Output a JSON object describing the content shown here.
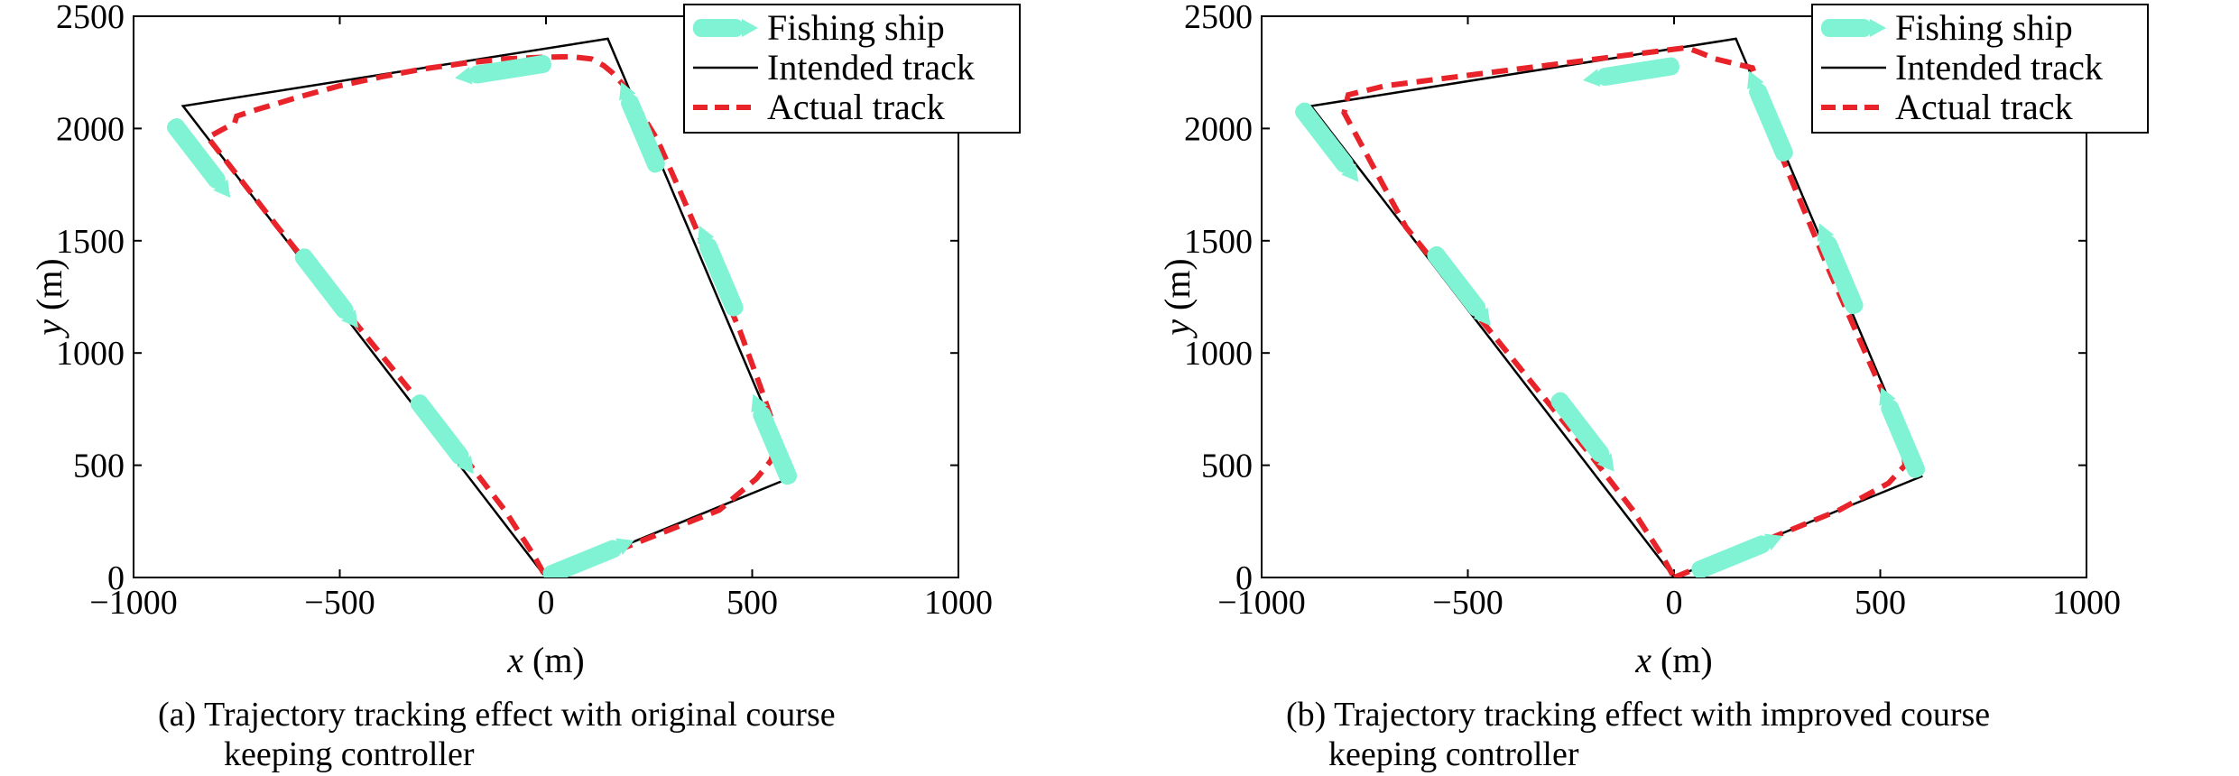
{
  "chart_data": [
    {
      "type": "line",
      "caption_lines": [
        "(a) Trajectory tracking effect with original course",
        "keeping controller"
      ],
      "xlabel_var": "x",
      "xlabel_unit": "(m)",
      "ylabel_var": "y",
      "ylabel_unit": "(m)",
      "xlim": [
        -1000,
        1000
      ],
      "ylim": [
        0,
        2500
      ],
      "xticks": [
        -1000,
        -500,
        0,
        500,
        1000
      ],
      "xtick_labels": [
        "−1000",
        "−500",
        "0",
        "500",
        "1000"
      ],
      "yticks": [
        0,
        500,
        1000,
        1500,
        2000,
        2500
      ],
      "ytick_labels": [
        "0",
        "500",
        "1000",
        "1500",
        "2000",
        "2500"
      ],
      "grid": false,
      "legend_position": "top-right",
      "series": [
        {
          "name": "Intended track",
          "color": "#000000",
          "style": "solid",
          "x": [
            0,
            600,
            150,
            -880,
            0
          ],
          "y": [
            0,
            450,
            2400,
            2100,
            0
          ]
        },
        {
          "name": "Actual track",
          "color": "#e8232a",
          "style": "dashed",
          "x": [
            0,
            200,
            420,
            510,
            545,
            560,
            548,
            520,
            470,
            400,
            330,
            270,
            220,
            185,
            160,
            140,
            110,
            60,
            0,
            -100,
            -200,
            -300,
            -400,
            -500,
            -600,
            -700,
            -750,
            -755,
            -780,
            -820,
            -650,
            -500,
            -350,
            -200,
            -100,
            -30,
            0
          ],
          "y": [
            0,
            140,
            300,
            440,
            520,
            600,
            700,
            850,
            1100,
            1400,
            1700,
            1950,
            2100,
            2200,
            2250,
            2280,
            2310,
            2320,
            2318,
            2310,
            2290,
            2265,
            2230,
            2190,
            2140,
            2085,
            2055,
            2025,
            2000,
            1960,
            1560,
            1220,
            880,
            540,
            300,
            100,
            0
          ]
        }
      ],
      "ships": {
        "name": "Fishing ship",
        "color": "#7ff3d3",
        "positions": [
          {
            "x": -840,
            "y": 1870
          },
          {
            "x": -530,
            "y": 1290
          },
          {
            "x": -250,
            "y": 640
          },
          {
            "x": 100,
            "y": 80
          },
          {
            "x": -100,
            "y": 2260
          },
          {
            "x": 230,
            "y": 2000
          },
          {
            "x": 420,
            "y": 1360
          },
          {
            "x": 550,
            "y": 610
          }
        ]
      }
    },
    {
      "type": "line",
      "caption_lines": [
        "(b) Trajectory tracking effect with improved course",
        "keeping controller"
      ],
      "xlabel_var": "x",
      "xlabel_unit": "(m)",
      "ylabel_var": "y",
      "ylabel_unit": "(m)",
      "xlim": [
        -1000,
        1000
      ],
      "ylim": [
        0,
        2500
      ],
      "xticks": [
        -1000,
        -500,
        0,
        500,
        1000
      ],
      "xtick_labels": [
        "−1000",
        "−500",
        "0",
        "500",
        "1000"
      ],
      "yticks": [
        0,
        500,
        1000,
        1500,
        2000,
        2500
      ],
      "ytick_labels": [
        "0",
        "500",
        "1000",
        "1500",
        "2000",
        "2500"
      ],
      "grid": false,
      "legend_position": "top-right",
      "series": [
        {
          "name": "Intended track",
          "color": "#000000",
          "style": "solid",
          "x": [
            0,
            600,
            150,
            -880,
            0
          ],
          "y": [
            0,
            450,
            2400,
            2100,
            0
          ]
        },
        {
          "name": "Actual track",
          "color": "#e8232a",
          "style": "dashed",
          "x": [
            0,
            200,
            400,
            520,
            560,
            555,
            500,
            380,
            260,
            215,
            190,
            100,
            60,
            30,
            -100,
            -400,
            -700,
            -790,
            -800,
            -650,
            -500,
            -350,
            -200,
            -100,
            -30,
            0
          ],
          "y": [
            0,
            150,
            300,
            420,
            500,
            600,
            850,
            1350,
            1880,
            2130,
            2270,
            2310,
            2340,
            2360,
            2330,
            2260,
            2190,
            2150,
            2070,
            1560,
            1220,
            880,
            540,
            300,
            100,
            0
          ]
        }
      ],
      "ships": {
        "name": "Fishing ship",
        "color": "#7ff3d3",
        "positions": [
          {
            "x": -840,
            "y": 1940
          },
          {
            "x": -520,
            "y": 1300
          },
          {
            "x": -220,
            "y": 650
          },
          {
            "x": 150,
            "y": 100
          },
          {
            "x": -100,
            "y": 2250
          },
          {
            "x": 230,
            "y": 2050
          },
          {
            "x": 400,
            "y": 1370
          },
          {
            "x": 550,
            "y": 640
          }
        ]
      }
    }
  ]
}
